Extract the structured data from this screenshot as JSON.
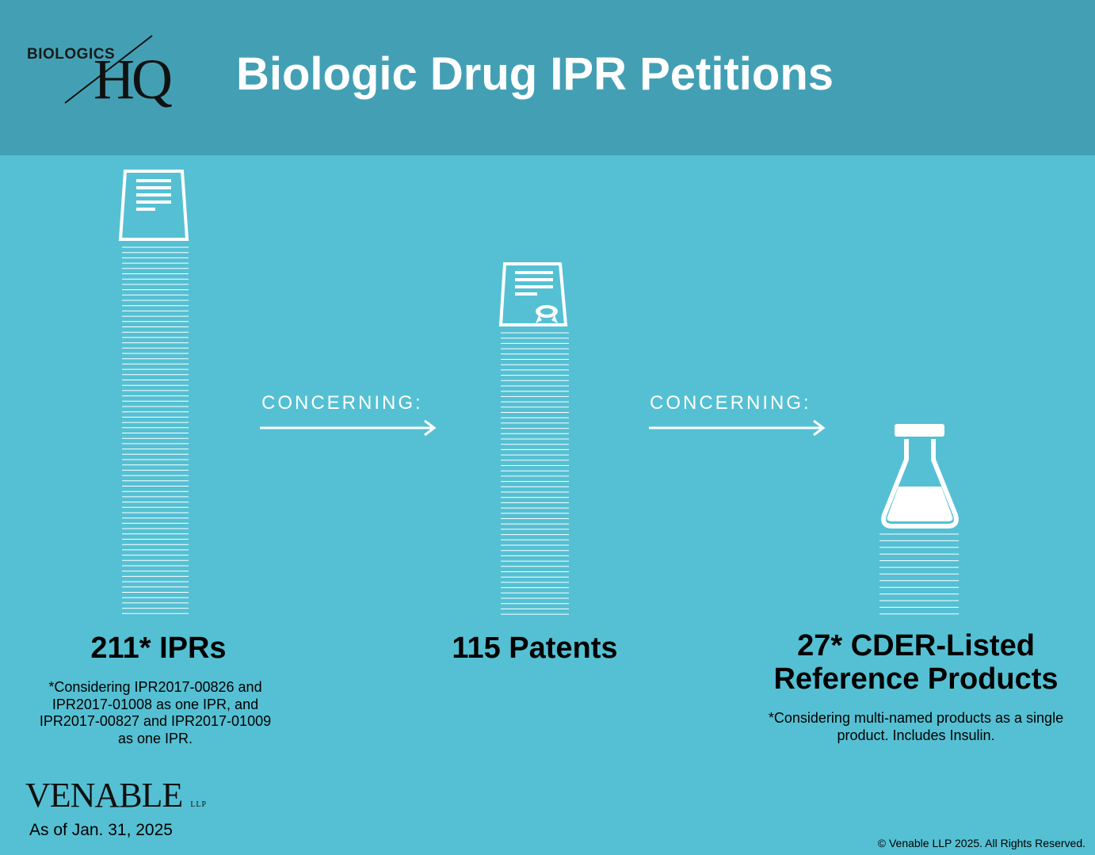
{
  "logo": {
    "small": "BIOLOGICS",
    "large": "HQ"
  },
  "title": "Biologic Drug IPR Petitions",
  "concerning_1": "CONCERNING:",
  "concerning_2": "CONCERNING:",
  "ipr": {
    "label": "211* IPRs",
    "note": "*Considering IPR2017-00826 and IPR2017-01008 as one IPR, and IPR2017-00827 and IPR2017-01009 as one IPR."
  },
  "patents": {
    "label": "115 Patents"
  },
  "products": {
    "label": "27* CDER-Listed Reference Products",
    "note": "*Considering multi-named products as a single product.  Includes Insulin."
  },
  "footer": {
    "brand": "VENABLE",
    "brand_suffix": "LLP",
    "as_of": "As of Jan. 31, 2025",
    "copyright": "© Venable LLP 2025. All Rights Reserved."
  },
  "colors": {
    "header": "#43a0b4",
    "background": "#55c0d3",
    "icon": "#ffffff"
  },
  "icons": [
    "document-icon",
    "patent-certificate-icon",
    "flask-icon",
    "arrow-right-icon"
  ]
}
